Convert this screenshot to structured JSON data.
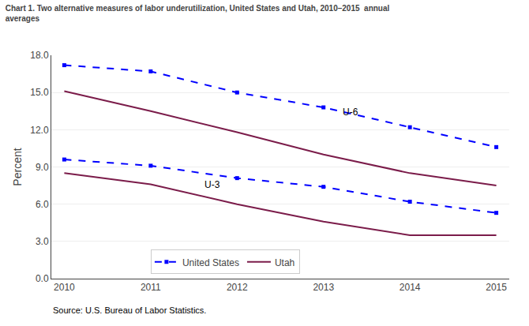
{
  "chart_data": {
    "type": "line",
    "title": "Chart 1. Two alternative measures of labor underutilization, United States and Utah, 2010–2015  annual\naverages",
    "y_label": "Percent",
    "source": "Source: U.S. Bureau of Labor Statistics.",
    "x": [
      2010,
      2011,
      2012,
      2013,
      2014,
      2015
    ],
    "series": [
      {
        "name": "United States",
        "color": "#0000FF",
        "line_style": "dashed",
        "marker": "square",
        "values": [
          17.2,
          16.7,
          15.0,
          13.8,
          12.2,
          10.6
        ]
      },
      {
        "name": "Utah",
        "color": "#7B1C4A",
        "line_style": "solid",
        "values": [
          15.1,
          13.5,
          11.8,
          10.0,
          8.5,
          7.5
        ]
      },
      {
        "name": "United States",
        "color": "#0000FF",
        "line_style": "dashed",
        "marker": "square",
        "values": [
          9.6,
          9.1,
          8.1,
          7.4,
          6.2,
          5.3
        ]
      },
      {
        "name": "Utah",
        "color": "#7B1C4A",
        "line_style": "solid",
        "values": [
          8.5,
          7.6,
          6.0,
          4.6,
          3.5,
          3.5
        ]
      }
    ],
    "annotations": [
      {
        "text": "U-6",
        "x": 2013.2,
        "y": 13.4
      },
      {
        "text": "U-3",
        "x": 2011.6,
        "y": 7.55
      }
    ],
    "xlim": [
      2009.85,
      2015.15
    ],
    "xticks": [
      2010,
      2011,
      2012,
      2013,
      2014,
      2015
    ],
    "ylim": [
      0.0,
      18.0
    ],
    "yticks": [
      {
        "value": 0.0,
        "label": "0.0"
      },
      {
        "value": 3.0,
        "label": "3.0"
      },
      {
        "value": 6.0,
        "label": "6.0"
      },
      {
        "value": 9.0,
        "label": "9.0"
      },
      {
        "value": 12.0,
        "label": "12.0"
      },
      {
        "value": 15.0,
        "label": "15.0"
      },
      {
        "value": 18.0,
        "label": "18.0"
      }
    ],
    "grid": "y",
    "legend": "lower center"
  }
}
